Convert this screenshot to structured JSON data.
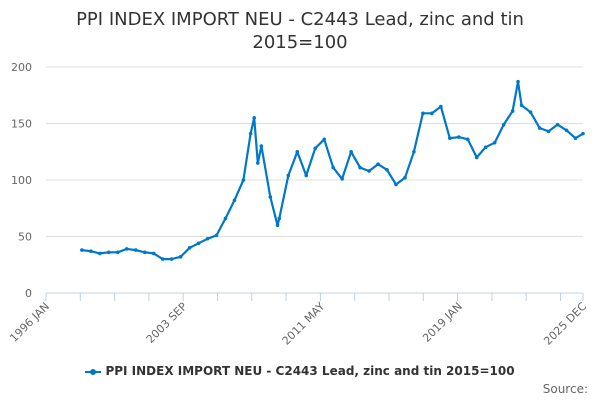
{
  "chart_data": {
    "type": "line",
    "title_line1": "PPI INDEX IMPORT NEU - C2443 Lead, zinc and tin",
    "title_line2": "2015=100",
    "xlabel": "",
    "ylabel": "",
    "ylim": [
      0,
      200
    ],
    "yticks": [
      "0",
      "50",
      "100",
      "150",
      "200"
    ],
    "xlim": [
      1996.0,
      2025.92
    ],
    "xtick_labels": [
      {
        "label": "1996 JAN",
        "x": 1996.0
      },
      {
        "label": "2003 SEP",
        "x": 2003.67
      },
      {
        "label": "2011 MAY",
        "x": 2011.33
      },
      {
        "label": "2019 JAN",
        "x": 2019.0
      },
      {
        "label": "2025 DEC",
        "x": 2025.92
      }
    ],
    "grid": true,
    "legend_placement": "bottom",
    "series": [
      {
        "name": "PPI INDEX IMPORT NEU - C2443 Lead, zinc and tin 2015=100",
        "color": "#0077c8",
        "x": [
          1998.0,
          1998.5,
          1999.0,
          1999.5,
          2000.0,
          2000.5,
          2001.0,
          2001.5,
          2002.0,
          2002.5,
          2003.0,
          2003.5,
          2004.0,
          2004.5,
          2005.0,
          2005.5,
          2006.0,
          2006.5,
          2007.0,
          2007.4,
          2007.6,
          2007.8,
          2008.0,
          2008.5,
          2008.9,
          2009.0,
          2009.5,
          2010.0,
          2010.5,
          2011.0,
          2011.5,
          2012.0,
          2012.5,
          2013.0,
          2013.5,
          2014.0,
          2014.5,
          2015.0,
          2015.5,
          2016.0,
          2016.5,
          2017.0,
          2017.5,
          2018.0,
          2018.5,
          2019.0,
          2019.5,
          2020.0,
          2020.5,
          2021.0,
          2021.5,
          2022.0,
          2022.3,
          2022.5,
          2023.0,
          2023.5,
          2024.0,
          2024.5,
          2025.0,
          2025.5,
          2025.92
        ],
        "values": [
          38,
          37,
          35,
          36,
          36,
          39,
          38,
          36,
          35,
          30,
          30,
          32,
          40,
          44,
          48,
          51,
          66,
          82,
          100,
          141,
          155,
          115,
          130,
          85,
          60,
          66,
          104,
          125,
          104,
          128,
          136,
          111,
          101,
          125,
          111,
          108,
          114,
          109,
          96,
          102,
          125,
          159,
          159,
          165,
          137,
          138,
          136,
          120,
          129,
          133,
          149,
          161,
          187,
          166,
          160,
          146,
          143,
          149,
          144,
          137,
          141
        ]
      }
    ],
    "source_label": "Source:"
  }
}
